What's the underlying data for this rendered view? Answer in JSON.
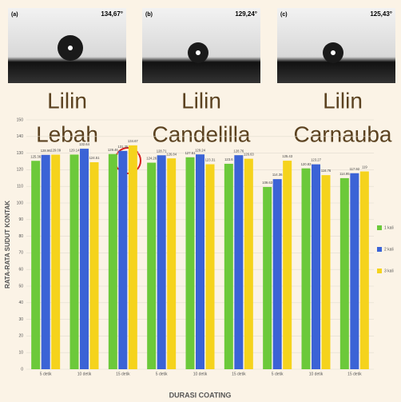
{
  "photos": [
    {
      "tag": "(a)",
      "angle": "134,67°",
      "caption": [
        "Lilin",
        "Lebah"
      ]
    },
    {
      "tag": "(b)",
      "angle": "129,24°",
      "caption": [
        "Lilin",
        "Candelilla"
      ]
    },
    {
      "tag": "(c)",
      "angle": "125,43°",
      "caption": [
        "Lilin",
        "Carnauba"
      ]
    }
  ],
  "chart_data": {
    "type": "bar",
    "ylabel": "RATA-RATA SUDUT KONTAK",
    "xlabel": "DURASI COATING",
    "categories": [
      "5 detik",
      "10 detik",
      "15 detik",
      "5 detik",
      "10 detik",
      "15 detik",
      "5 detik",
      "10 detik",
      "15 detik"
    ],
    "series": [
      {
        "name": "1 kali",
        "color": "#6cc93a",
        "values": [
          125.36,
          129.14,
          129.46,
          124.26,
          127.51,
          123.6,
          109.63,
          120.83,
          114.95
        ]
      },
      {
        "name": "2 kali",
        "color": "#3b63d6",
        "values": [
          128.96,
          132.64,
          131.35,
          128.71,
          129.24,
          128.76,
          114.36,
          123.27,
          117.92
        ]
      },
      {
        "name": "3 kali",
        "color": "#f5d31c",
        "values": [
          129.09,
          124.51,
          134.67,
          126.84,
          123.31,
          126.63,
          125.43,
          116.76,
          119
        ]
      }
    ],
    "ylim": [
      0,
      150
    ],
    "yticks": [
      0,
      10,
      20,
      30,
      40,
      50,
      60,
      70,
      80,
      90,
      100,
      110,
      120,
      130,
      140,
      150
    ],
    "grid": true,
    "legend": "right"
  }
}
